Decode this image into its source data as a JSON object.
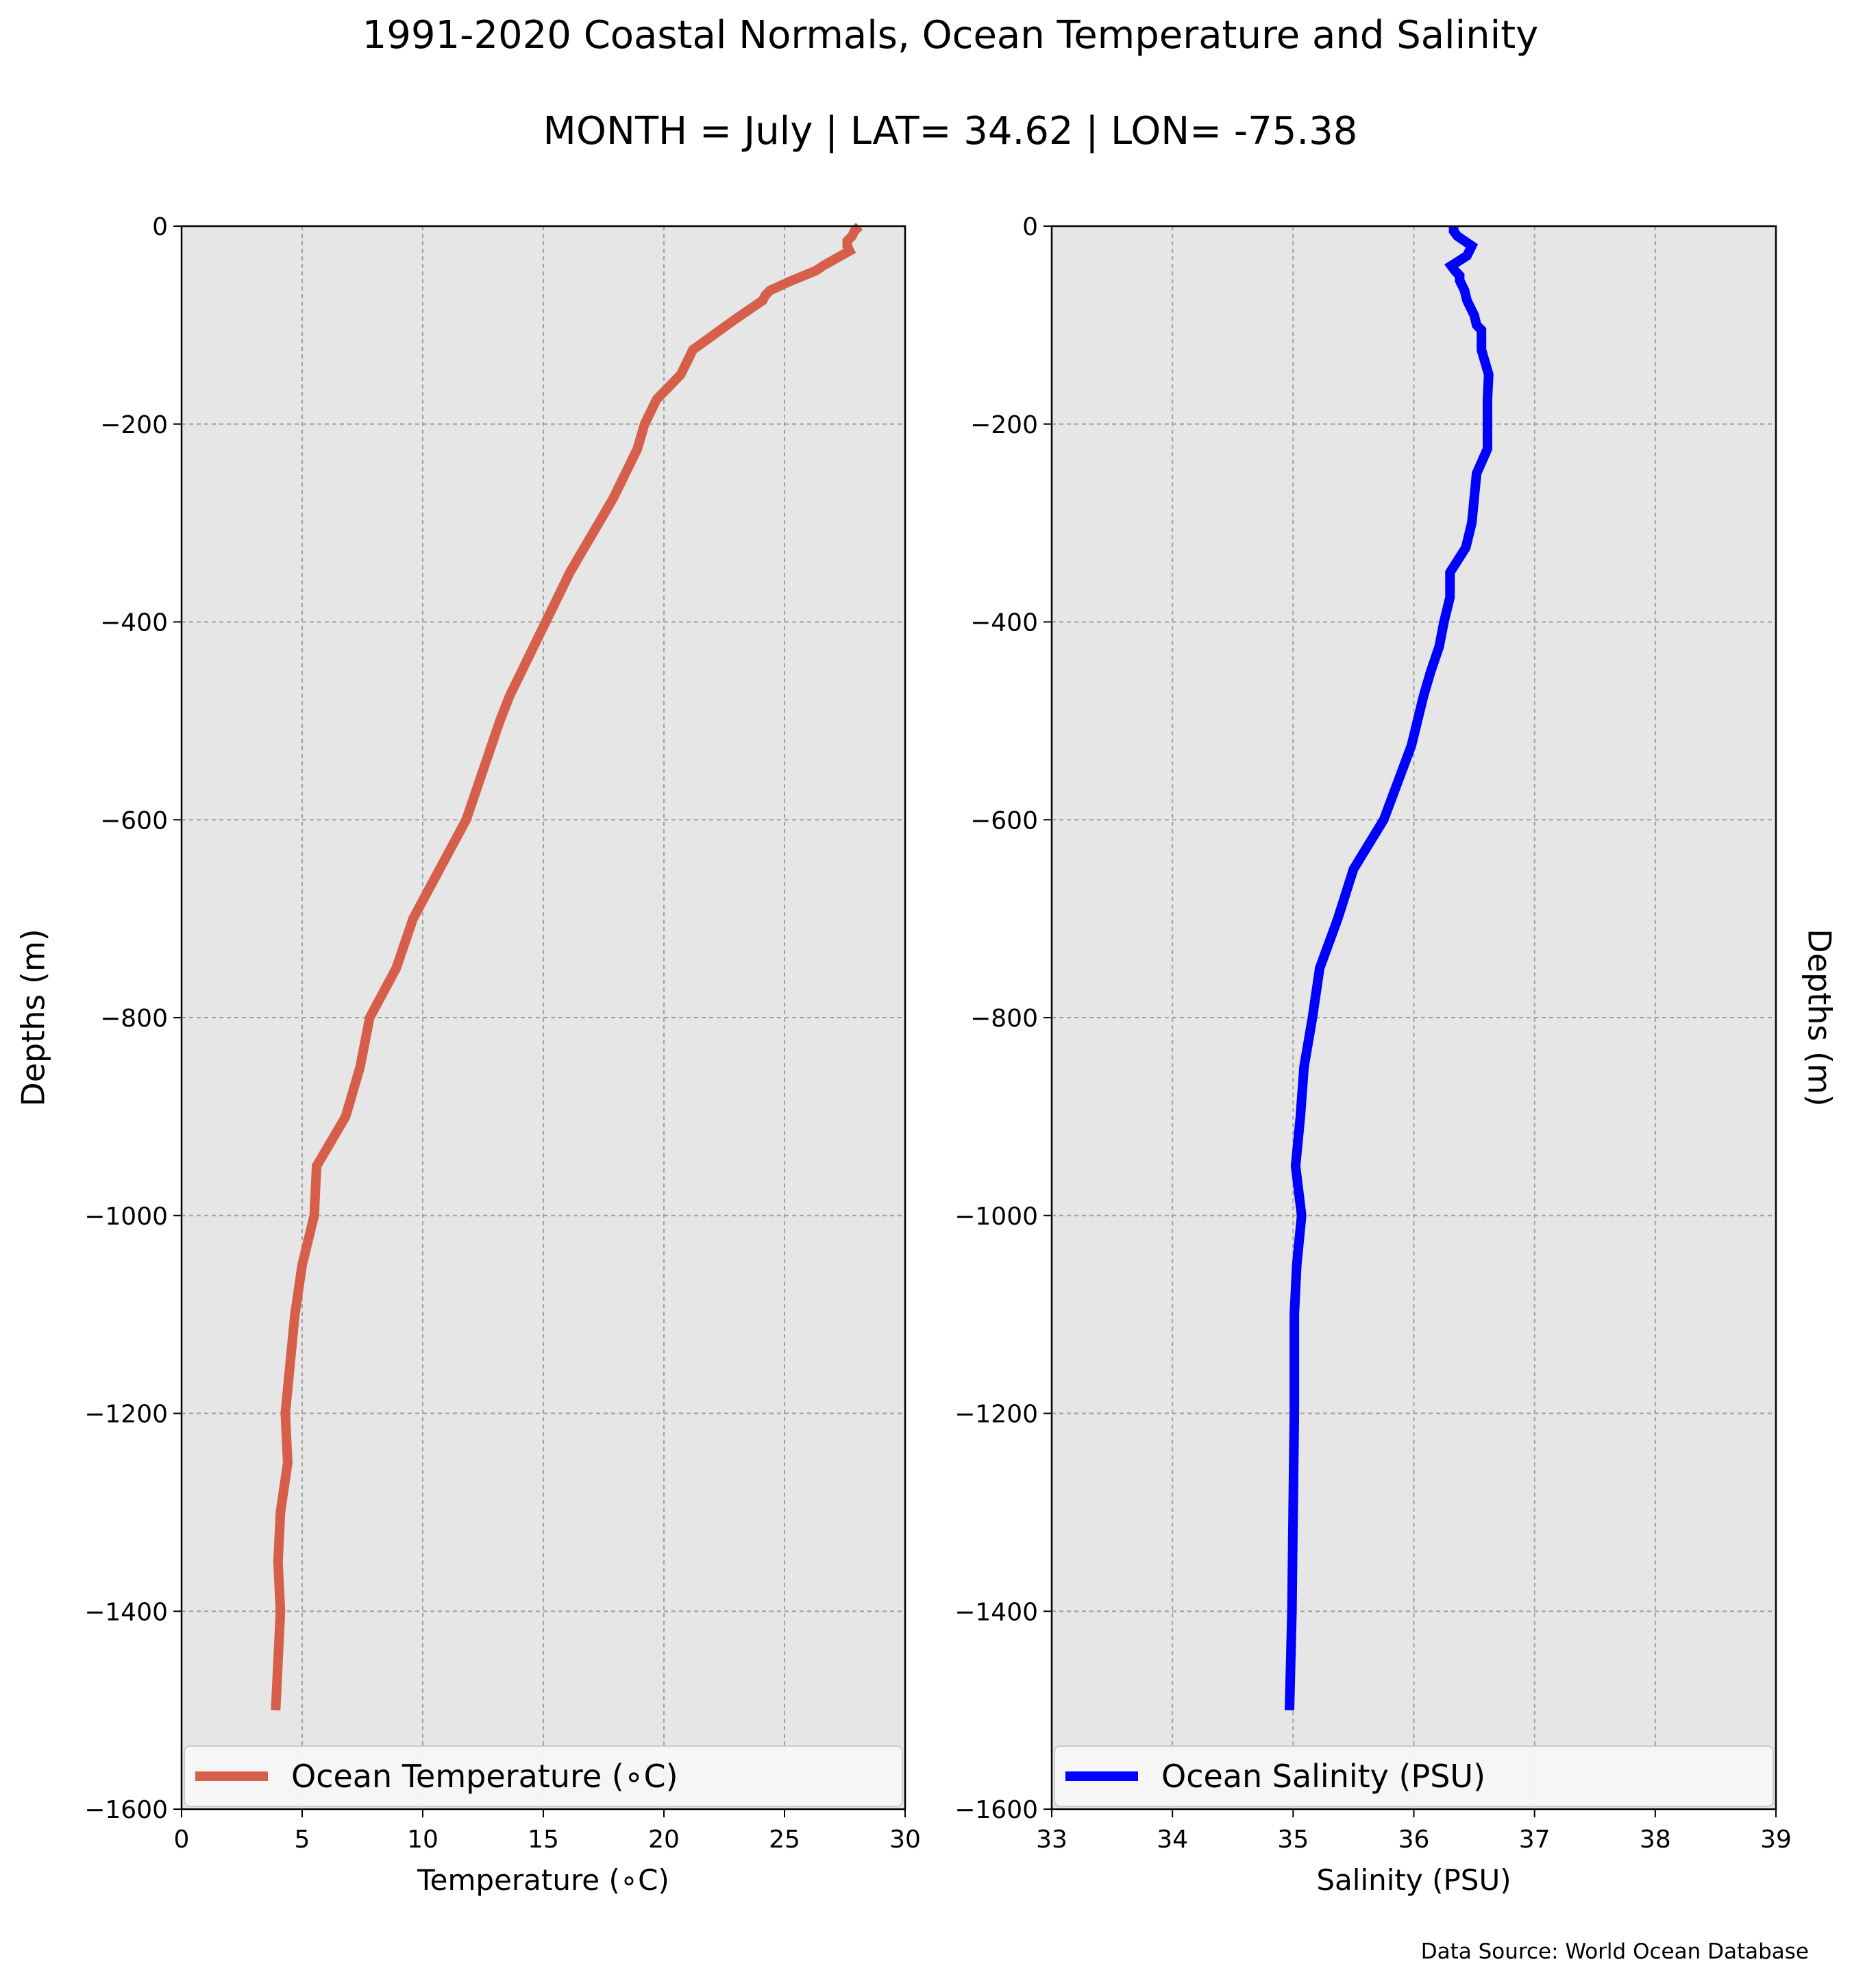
{
  "title": "1991-2020 Coastal Normals, Ocean Temperature and Salinity",
  "subtitle": "MONTH = July | LAT= 34.62 | LON= -75.38",
  "source": "Data Source: World Ocean Database",
  "chart_data": [
    {
      "type": "line",
      "xlabel": "Temperature (∘C)",
      "ylabel": "Depths (m)",
      "xlim": [
        0,
        30
      ],
      "ylim": [
        -1600,
        0
      ],
      "xticks": [
        "0",
        "5",
        "10",
        "15",
        "20",
        "25",
        "30"
      ],
      "yticks": [
        "0",
        "−200",
        "−400",
        "−600",
        "−800",
        "−1000",
        "−1200",
        "−1400",
        "−1600"
      ],
      "grid": true,
      "legend_position": "bottom",
      "color": "#d65f4c",
      "series": [
        {
          "name": "Ocean Temperature (∘C)",
          "points": [
            [
              28.1,
              0
            ],
            [
              27.9,
              -5
            ],
            [
              27.8,
              -10
            ],
            [
              27.6,
              -15
            ],
            [
              27.6,
              -20
            ],
            [
              27.7,
              -25
            ],
            [
              26.6,
              -40
            ],
            [
              26.3,
              -45
            ],
            [
              25.3,
              -55
            ],
            [
              24.4,
              -65
            ],
            [
              24.2,
              -70
            ],
            [
              24.1,
              -75
            ],
            [
              22.9,
              -95
            ],
            [
              21.2,
              -125
            ],
            [
              20.7,
              -150
            ],
            [
              19.7,
              -175
            ],
            [
              19.2,
              -200
            ],
            [
              18.9,
              -225
            ],
            [
              18.4,
              -250
            ],
            [
              17.9,
              -275
            ],
            [
              17.3,
              -300
            ],
            [
              16.7,
              -325
            ],
            [
              16.1,
              -350
            ],
            [
              15.6,
              -375
            ],
            [
              15.1,
              -400
            ],
            [
              14.6,
              -425
            ],
            [
              14.1,
              -450
            ],
            [
              13.6,
              -475
            ],
            [
              13.2,
              -500
            ],
            [
              11.8,
              -600
            ],
            [
              10.7,
              -650
            ],
            [
              9.6,
              -700
            ],
            [
              8.9,
              -750
            ],
            [
              7.8,
              -800
            ],
            [
              7.4,
              -850
            ],
            [
              6.8,
              -900
            ],
            [
              5.6,
              -950
            ],
            [
              5.5,
              -1000
            ],
            [
              5.0,
              -1050
            ],
            [
              4.7,
              -1100
            ],
            [
              4.5,
              -1150
            ],
            [
              4.3,
              -1200
            ],
            [
              4.4,
              -1250
            ],
            [
              4.1,
              -1300
            ],
            [
              4.0,
              -1350
            ],
            [
              4.1,
              -1400
            ],
            [
              4.0,
              -1450
            ],
            [
              3.9,
              -1500
            ]
          ]
        }
      ]
    },
    {
      "type": "line",
      "xlabel": "Salinity (PSU)",
      "ylabel": "Depths (m)",
      "xlim": [
        33,
        39
      ],
      "ylim": [
        -1600,
        0
      ],
      "xticks": [
        "33",
        "34",
        "35",
        "36",
        "37",
        "38",
        "39"
      ],
      "yticks": [
        "0",
        "−200",
        "−400",
        "−600",
        "−800",
        "−1000",
        "−1200",
        "−1400",
        "−1600"
      ],
      "grid": true,
      "legend_position": "bottom",
      "color": "#0000ff",
      "series": [
        {
          "name": "Ocean Salinity (PSU)",
          "points": [
            [
              36.33,
              0
            ],
            [
              36.33,
              -5
            ],
            [
              36.36,
              -10
            ],
            [
              36.48,
              -20
            ],
            [
              36.44,
              -30
            ],
            [
              36.31,
              -40
            ],
            [
              36.34,
              -45
            ],
            [
              36.38,
              -50
            ],
            [
              36.38,
              -55
            ],
            [
              36.42,
              -65
            ],
            [
              36.44,
              -75
            ],
            [
              36.46,
              -80
            ],
            [
              36.5,
              -90
            ],
            [
              36.52,
              -100
            ],
            [
              36.56,
              -105
            ],
            [
              36.56,
              -125
            ],
            [
              36.62,
              -150
            ],
            [
              36.61,
              -175
            ],
            [
              36.61,
              -200
            ],
            [
              36.61,
              -225
            ],
            [
              36.52,
              -250
            ],
            [
              36.5,
              -275
            ],
            [
              36.48,
              -300
            ],
            [
              36.43,
              -325
            ],
            [
              36.3,
              -350
            ],
            [
              36.3,
              -375
            ],
            [
              36.25,
              -400
            ],
            [
              36.21,
              -425
            ],
            [
              36.14,
              -450
            ],
            [
              36.08,
              -475
            ],
            [
              35.98,
              -525
            ],
            [
              35.75,
              -600
            ],
            [
              35.5,
              -650
            ],
            [
              35.37,
              -700
            ],
            [
              35.22,
              -750
            ],
            [
              35.16,
              -800
            ],
            [
              35.09,
              -850
            ],
            [
              35.06,
              -900
            ],
            [
              35.02,
              -950
            ],
            [
              35.07,
              -1000
            ],
            [
              35.03,
              -1050
            ],
            [
              35.01,
              -1100
            ],
            [
              35.01,
              -1200
            ],
            [
              35.0,
              -1300
            ],
            [
              34.99,
              -1400
            ],
            [
              34.97,
              -1500
            ]
          ]
        }
      ]
    }
  ]
}
